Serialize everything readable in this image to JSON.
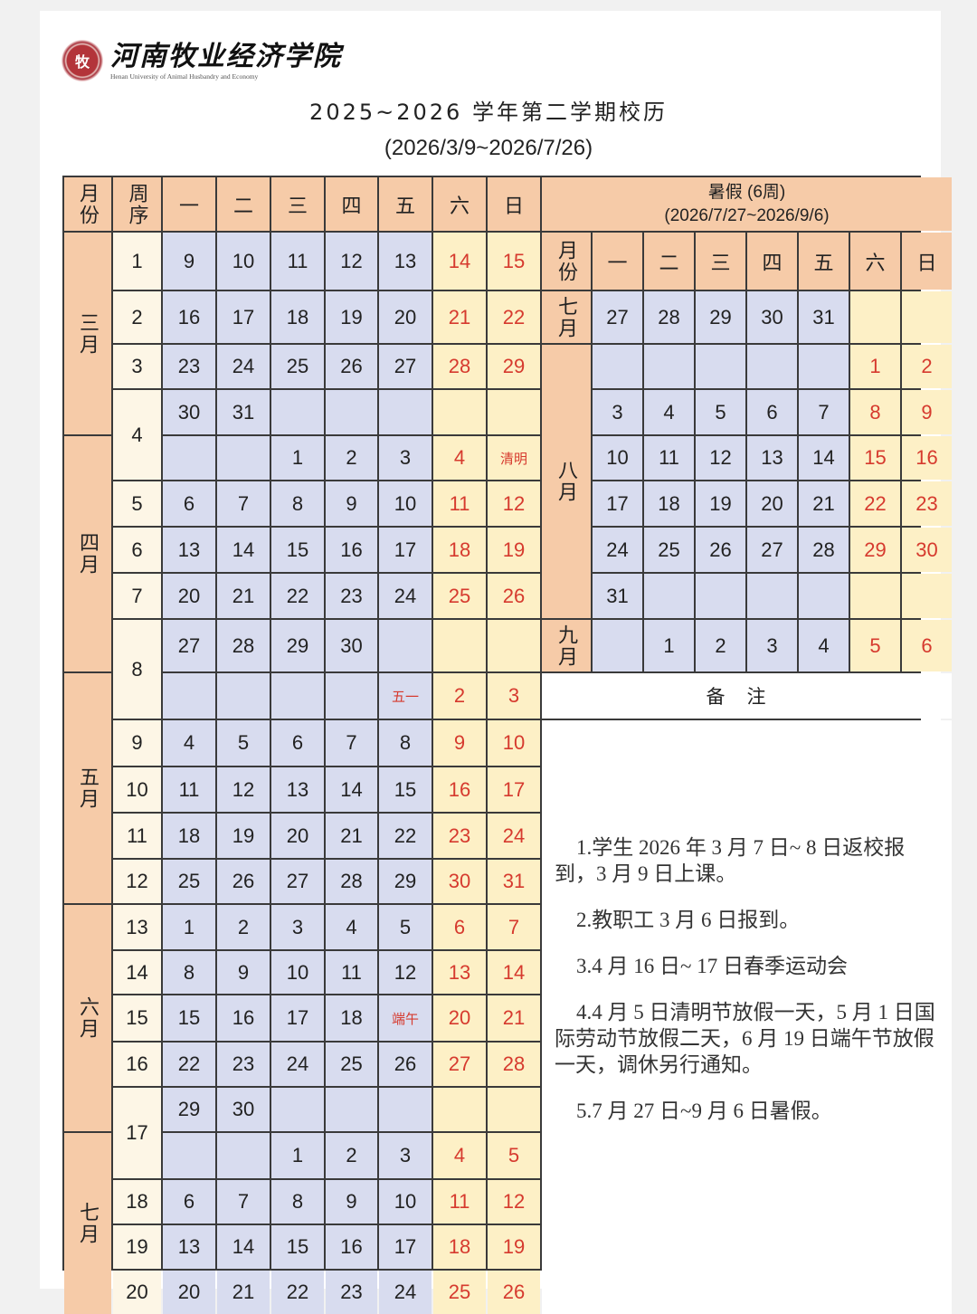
{
  "logo": {
    "name_cn": "河南牧业经济学院",
    "name_en": "Henan University of Animal Husbandry and Economy",
    "seal_color": "#b3343a"
  },
  "title": "2025~2026 学年第二学期校历",
  "subtitle": "(2026/3/9~2026/7/26)",
  "colors": {
    "header": "#f6cba8",
    "weekday": "#d8dcef",
    "weekend": "#fdf0c6",
    "holiday_text": "#d63a2e"
  },
  "semester": {
    "headers": {
      "month": "月份",
      "week": "周序",
      "days": [
        "一",
        "二",
        "三",
        "四",
        "五",
        "六",
        "日"
      ]
    },
    "months": [
      {
        "label": "三月",
        "span": 4
      },
      {
        "label": "四月",
        "span": 5
      },
      {
        "label": "五月",
        "span": 5
      },
      {
        "label": "六月",
        "span": 5
      },
      {
        "label": "七月",
        "span": 4
      }
    ],
    "weeks": [
      {
        "label": "1",
        "span": 1
      },
      {
        "label": "2",
        "span": 1
      },
      {
        "label": "3",
        "span": 1
      },
      {
        "label": "4",
        "span": 2
      },
      {
        "label": "5",
        "span": 1
      },
      {
        "label": "6",
        "span": 1
      },
      {
        "label": "7",
        "span": 1
      },
      {
        "label": "8",
        "span": 2
      },
      {
        "label": "9",
        "span": 1
      },
      {
        "label": "10",
        "span": 1
      },
      {
        "label": "11",
        "span": 1
      },
      {
        "label": "12",
        "span": 1
      },
      {
        "label": "13",
        "span": 1
      },
      {
        "label": "14",
        "span": 1
      },
      {
        "label": "15",
        "span": 1
      },
      {
        "label": "16",
        "span": 1
      },
      {
        "label": "17",
        "span": 2
      },
      {
        "label": "18",
        "span": 1
      },
      {
        "label": "19",
        "span": 1
      },
      {
        "label": "20",
        "span": 1
      }
    ],
    "rows": [
      [
        "9",
        "10",
        "11",
        "12",
        "13",
        "14",
        "15"
      ],
      [
        "16",
        "17",
        "18",
        "19",
        "20",
        "21",
        "22"
      ],
      [
        "23",
        "24",
        "25",
        "26",
        "27",
        "28",
        "29"
      ],
      [
        "30",
        "31",
        "",
        "",
        "",
        "",
        ""
      ],
      [
        "",
        "",
        "1",
        "2",
        "3",
        "4",
        "清明"
      ],
      [
        "6",
        "7",
        "8",
        "9",
        "10",
        "11",
        "12"
      ],
      [
        "13",
        "14",
        "15",
        "16",
        "17",
        "18",
        "19"
      ],
      [
        "20",
        "21",
        "22",
        "23",
        "24",
        "25",
        "26"
      ],
      [
        "27",
        "28",
        "29",
        "30",
        "",
        "",
        ""
      ],
      [
        "",
        "",
        "",
        "",
        "五一",
        "2",
        "3"
      ],
      [
        "4",
        "5",
        "6",
        "7",
        "8",
        "9",
        "10"
      ],
      [
        "11",
        "12",
        "13",
        "14",
        "15",
        "16",
        "17"
      ],
      [
        "18",
        "19",
        "20",
        "21",
        "22",
        "23",
        "24"
      ],
      [
        "25",
        "26",
        "27",
        "28",
        "29",
        "30",
        "31"
      ],
      [
        "1",
        "2",
        "3",
        "4",
        "5",
        "6",
        "7"
      ],
      [
        "8",
        "9",
        "10",
        "11",
        "12",
        "13",
        "14"
      ],
      [
        "15",
        "16",
        "17",
        "18",
        "端午",
        "20",
        "21"
      ],
      [
        "22",
        "23",
        "24",
        "25",
        "26",
        "27",
        "28"
      ],
      [
        "29",
        "30",
        "",
        "",
        "",
        "",
        ""
      ],
      [
        "",
        "",
        "1",
        "2",
        "3",
        "4",
        "5"
      ],
      [
        "6",
        "7",
        "8",
        "9",
        "10",
        "11",
        "12"
      ],
      [
        "13",
        "14",
        "15",
        "16",
        "17",
        "18",
        "19"
      ],
      [
        "20",
        "21",
        "22",
        "23",
        "24",
        "25",
        "26"
      ]
    ],
    "holidays": [
      "清明",
      "五一",
      "端午"
    ]
  },
  "summer": {
    "title": "暑假 (6周)",
    "range": "(2026/7/27~2026/9/6)",
    "headers": {
      "month": "月份",
      "days": [
        "一",
        "二",
        "三",
        "四",
        "五",
        "六",
        "日"
      ]
    },
    "months": [
      {
        "label": "七月",
        "span": 1
      },
      {
        "label": "八月",
        "span": 6
      },
      {
        "label": "九月",
        "span": 1
      }
    ],
    "rows": [
      [
        "27",
        "28",
        "29",
        "30",
        "31",
        "",
        ""
      ],
      [
        "",
        "",
        "",
        "",
        "",
        "1",
        "2"
      ],
      [
        "3",
        "4",
        "5",
        "6",
        "7",
        "8",
        "9"
      ],
      [
        "10",
        "11",
        "12",
        "13",
        "14",
        "15",
        "16"
      ],
      [
        "17",
        "18",
        "19",
        "20",
        "21",
        "22",
        "23"
      ],
      [
        "24",
        "25",
        "26",
        "27",
        "28",
        "29",
        "30"
      ],
      [
        "31",
        "",
        "",
        "",
        "",
        "",
        ""
      ],
      [
        "",
        "1",
        "2",
        "3",
        "4",
        "5",
        "6"
      ]
    ]
  },
  "remarks": {
    "title": "备注",
    "items": [
      "1.学生 2026 年 3 月 7 日~ 8 日返校报到，3 月 9 日上课。",
      "2.教职工 3 月 6 日报到。",
      "3.4 月 16 日~ 17 日春季运动会",
      "4.4 月 5 日清明节放假一天，5 月 1 日国际劳动节放假二天，6 月 19 日端午节放假一天，调休另行通知。",
      "5.7 月 27 日~9 月 6 日暑假。"
    ]
  }
}
